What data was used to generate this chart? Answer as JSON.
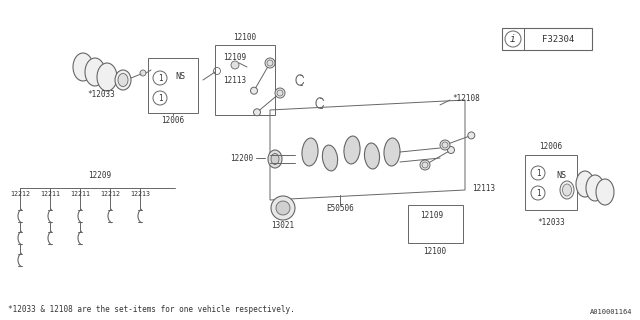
{
  "bg_color": "#ffffff",
  "line_color": "#666666",
  "text_color": "#333333",
  "footnote": "*12033 & 12108 are the set-items for one vehicle respectively.",
  "diagram_id": "A010001164",
  "part_code": "F32304",
  "fig_w": 6.4,
  "fig_h": 3.2,
  "dpi": 100
}
